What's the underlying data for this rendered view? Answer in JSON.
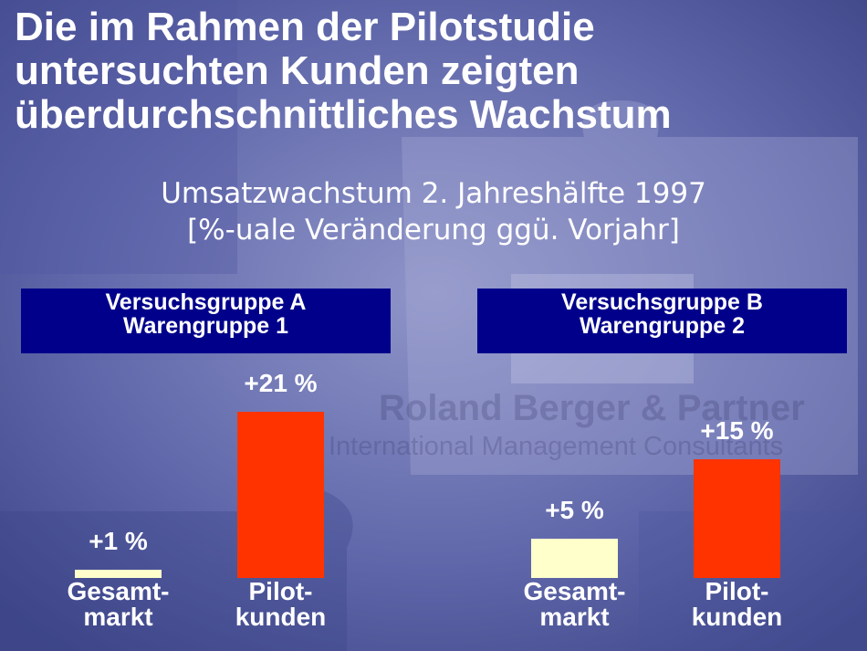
{
  "title": {
    "line1": "Die im Rahmen der Pilotstudie",
    "line2": "untersuchten Kunden zeigten",
    "line3": "überdurchschnittliches Wachstum"
  },
  "subtitle": {
    "line1": "Umsatzwachstum 2. Jahreshälfte 1997",
    "line2": "[%-uale Veränderung ggü. Vorjahr]"
  },
  "watermark": {
    "line1": "Roland Berger & Partner",
    "line2": "International Management Consultants"
  },
  "colors": {
    "background": "#5b63a6",
    "header_bg": "#00008b",
    "gesamtmarkt_bar": "#ffffcc",
    "pilotkunden_bar": "#ff3300",
    "text": "#ffffff"
  },
  "chart_data": [
    {
      "type": "bar",
      "group_title": [
        "Versuchsgruppe A",
        "Warengruppe 1"
      ],
      "categories": [
        [
          "Gesamt-",
          "markt"
        ],
        [
          "Pilot-",
          "kunden"
        ]
      ],
      "values": [
        1,
        21
      ],
      "data_labels": [
        "+1 %",
        "+21 %"
      ],
      "ylim": [
        0,
        21
      ],
      "grid": false
    },
    {
      "type": "bar",
      "group_title": [
        "Versuchsgruppe B",
        "Warengruppe 2"
      ],
      "categories": [
        [
          "Gesamt-",
          "markt"
        ],
        [
          "Pilot-",
          "kunden"
        ]
      ],
      "values": [
        5,
        15
      ],
      "data_labels": [
        "+5 %",
        "+15 %"
      ],
      "ylim": [
        0,
        21
      ],
      "grid": false
    }
  ]
}
